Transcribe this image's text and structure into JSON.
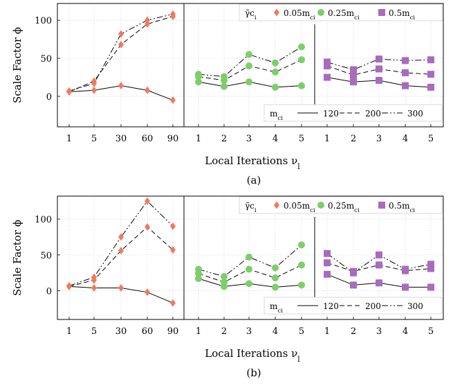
{
  "chart_data": [
    {
      "type": "line",
      "panel_label": "(a)",
      "ylabel": "Scale Factor ϕ",
      "xlabel": "Local Iterations ν",
      "xlabel_sub": "l",
      "ylim": [
        -40,
        122
      ],
      "yticks": [
        0,
        50,
        100
      ],
      "grid": true,
      "legend_title": "γ̄c",
      "legend_title_sub": "i",
      "groups": [
        {
          "label": "0.05m",
          "label_sub": "ci",
          "marker": "diamond",
          "color": "#f07a5c",
          "x": [
            "1",
            "5",
            "30",
            "60",
            "90"
          ],
          "series": [
            {
              "m": "120",
              "values": [
                6,
                8,
                14,
                8,
                -5
              ]
            },
            {
              "m": "200",
              "values": [
                6,
                20,
                68,
                95,
                105
              ]
            },
            {
              "m": "300",
              "values": [
                7,
                17,
                82,
                100,
                108
              ]
            }
          ]
        },
        {
          "label": "0.25m",
          "label_sub": "ci",
          "marker": "circle",
          "color": "#7dce6b",
          "x": [
            "1",
            "2",
            "3",
            "4",
            "5"
          ],
          "series": [
            {
              "m": "120",
              "values": [
                19,
                13,
                19,
                12,
                14
              ]
            },
            {
              "m": "200",
              "values": [
                26,
                21,
                40,
                32,
                48
              ]
            },
            {
              "m": "300",
              "values": [
                29,
                26,
                55,
                44,
                65
              ]
            }
          ]
        },
        {
          "label": "0.5m",
          "label_sub": "ci",
          "marker": "square",
          "color": "#a86bbd",
          "x": [
            "1",
            "2",
            "3",
            "4",
            "5"
          ],
          "series": [
            {
              "m": "120",
              "values": [
                25,
                19,
                21,
                14,
                12
              ]
            },
            {
              "m": "200",
              "values": [
                40,
                28,
                36,
                31,
                29
              ]
            },
            {
              "m": "300",
              "values": [
                45,
                35,
                49,
                47,
                48
              ]
            }
          ]
        }
      ],
      "mlegend": {
        "title": "m",
        "title_sub": "ci",
        "entries": [
          "120",
          "200",
          "300"
        ]
      }
    },
    {
      "type": "line",
      "panel_label": "(b)",
      "ylabel": "Scale Factor ϕ",
      "xlabel": "Local Iterations ν",
      "xlabel_sub": "l",
      "ylim": [
        -40,
        132
      ],
      "yticks": [
        0,
        50,
        100
      ],
      "grid": true,
      "legend_title": "γ̄c",
      "legend_title_sub": "i",
      "groups": [
        {
          "label": "0.05m",
          "label_sub": "ci",
          "marker": "diamond",
          "color": "#f07a5c",
          "x": [
            "1",
            "5",
            "30",
            "60",
            "90"
          ],
          "series": [
            {
              "m": "120",
              "values": [
                6,
                4,
                4,
                -2,
                -17
              ]
            },
            {
              "m": "200",
              "values": [
                6,
                15,
                56,
                89,
                57
              ]
            },
            {
              "m": "300",
              "values": [
                7,
                19,
                75,
                125,
                90
              ]
            }
          ]
        },
        {
          "label": "0.25m",
          "label_sub": "ci",
          "marker": "circle",
          "color": "#7dce6b",
          "x": [
            "1",
            "2",
            "3",
            "4",
            "5"
          ],
          "series": [
            {
              "m": "120",
              "values": [
                17,
                6,
                10,
                5,
                8
              ]
            },
            {
              "m": "200",
              "values": [
                24,
                12,
                30,
                18,
                36
              ]
            },
            {
              "m": "300",
              "values": [
                30,
                20,
                47,
                32,
                64
              ]
            }
          ]
        },
        {
          "label": "0.5m",
          "label_sub": "ci",
          "marker": "square",
          "color": "#a86bbd",
          "x": [
            "1",
            "2",
            "3",
            "4",
            "5"
          ],
          "series": [
            {
              "m": "120",
              "values": [
                23,
                8,
                11,
                5,
                5
              ]
            },
            {
              "m": "200",
              "values": [
                39,
                27,
                36,
                28,
                31
              ]
            },
            {
              "m": "300",
              "values": [
                52,
                25,
                50,
                30,
                37
              ]
            }
          ]
        }
      ],
      "mlegend": {
        "title": "m",
        "title_sub": "ci",
        "entries": [
          "120",
          "200",
          "300"
        ]
      }
    }
  ]
}
